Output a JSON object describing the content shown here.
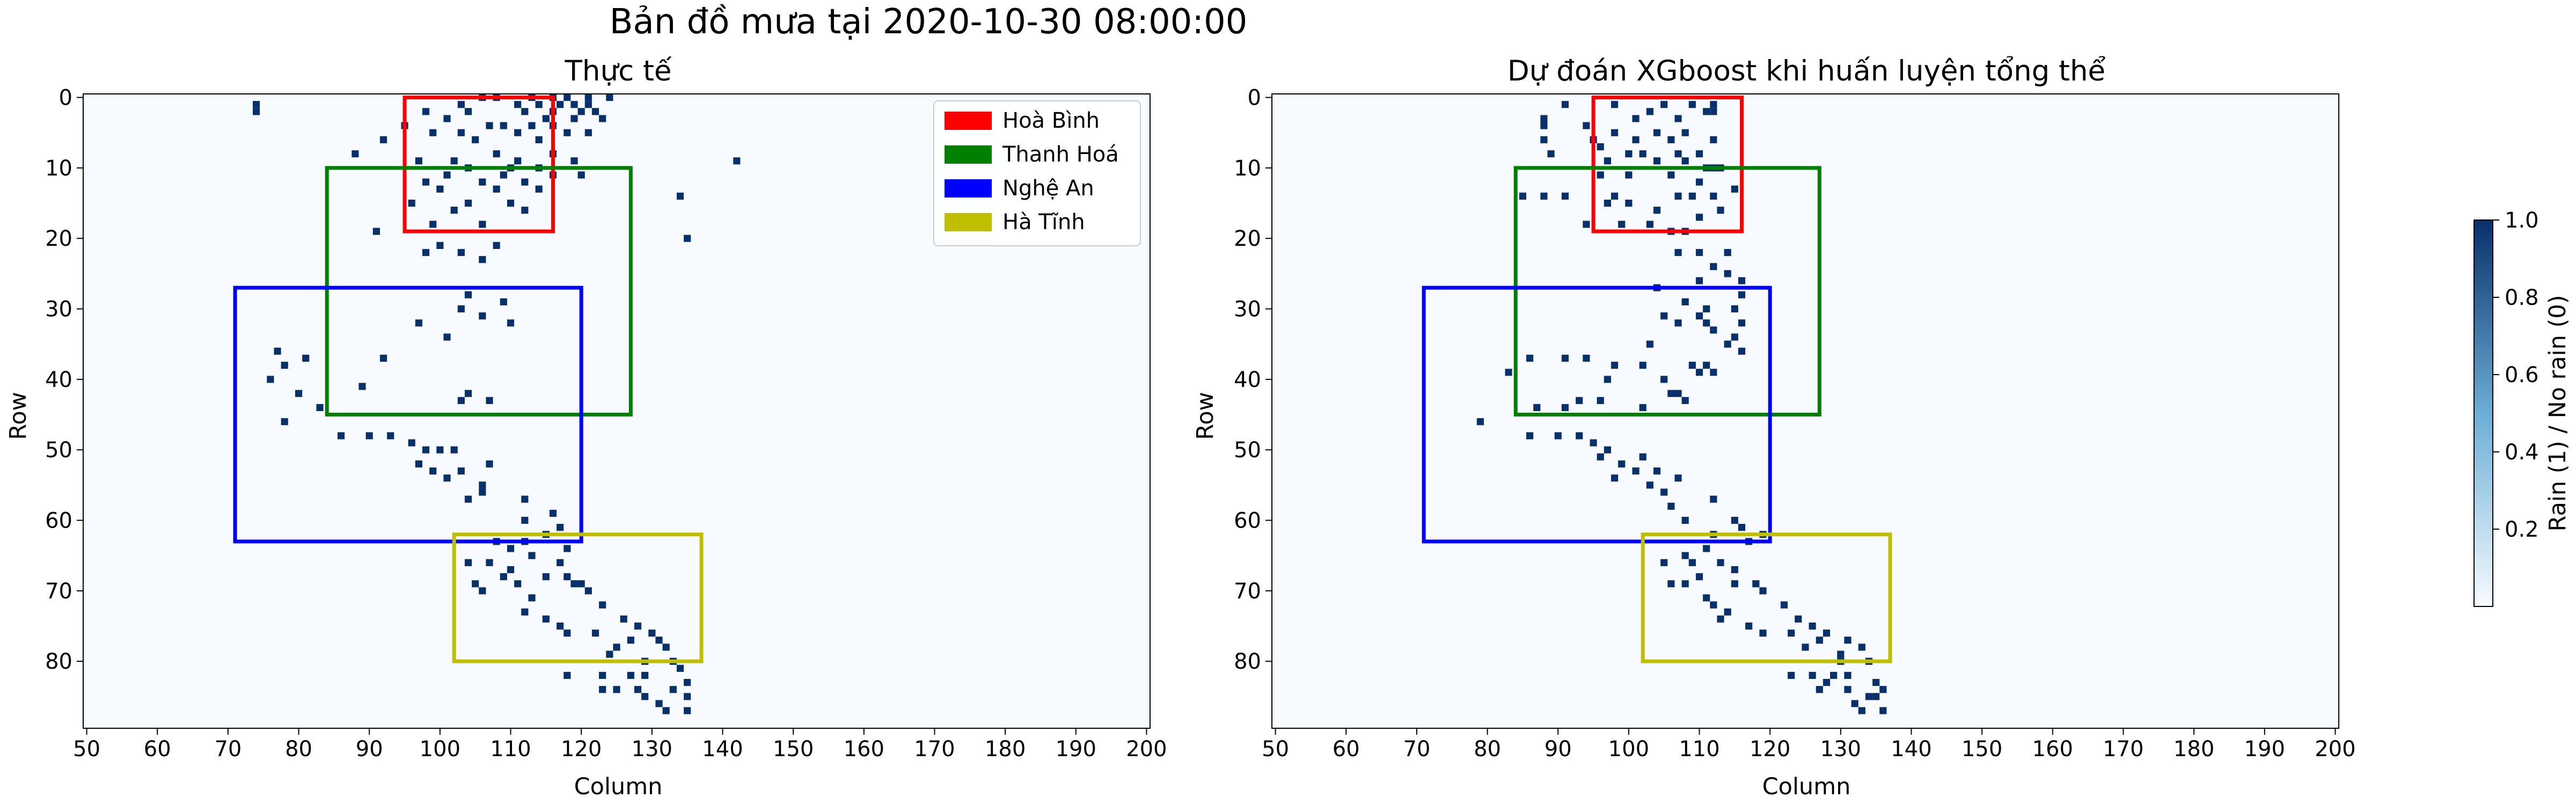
{
  "suptitle": "Bản đồ mưa tại 2020-10-30 08:00:00",
  "colors": {
    "background_cell": "#f7fbff",
    "rain_cell": "#08306b",
    "cmap_low": "#f7fbff",
    "cmap_mid": "#6baed6",
    "cmap_high": "#08306b"
  },
  "colorbar": {
    "label": "Rain (1) / No rain (0)",
    "ticks": [
      "0.2",
      "0.4",
      "0.6",
      "0.8",
      "1.0"
    ],
    "range": [
      0,
      1
    ]
  },
  "chart_data": [
    {
      "type": "heatmap",
      "title": "Thực tế",
      "xlabel": "Column",
      "ylabel": "Row",
      "xlim": [
        49.5,
        200.5
      ],
      "ylim": [
        89.5,
        -0.5
      ],
      "xticks": [
        "50",
        "60",
        "70",
        "80",
        "90",
        "100",
        "110",
        "120",
        "130",
        "140",
        "150",
        "160",
        "170",
        "180",
        "190",
        "200"
      ],
      "yticks": [
        "0",
        "10",
        "20",
        "30",
        "40",
        "50",
        "60",
        "70",
        "80"
      ],
      "grid": false,
      "legend_position": "top-right",
      "regions": [
        {
          "name": "Hoà Bình",
          "color": "#ff0000",
          "col_range": [
            95,
            116
          ],
          "row_range": [
            0,
            19
          ]
        },
        {
          "name": "Thanh Hoá",
          "color": "#008000",
          "col_range": [
            84,
            127
          ],
          "row_range": [
            10,
            45
          ]
        },
        {
          "name": "Nghệ An",
          "color": "#0000ff",
          "col_range": [
            71,
            120
          ],
          "row_range": [
            27,
            63
          ]
        },
        {
          "name": "Hà Tĩnh",
          "color": "#bfbf00",
          "col_range": [
            102,
            137
          ],
          "row_range": [
            62,
            80
          ]
        }
      ],
      "rain_cells": [
        [
          74,
          1
        ],
        [
          74,
          2
        ],
        [
          106,
          0
        ],
        [
          108,
          0
        ],
        [
          113,
          0
        ],
        [
          116,
          0
        ],
        [
          118,
          0
        ],
        [
          121,
          0
        ],
        [
          124,
          0
        ],
        [
          103,
          1
        ],
        [
          111,
          1
        ],
        [
          114,
          1
        ],
        [
          117,
          1
        ],
        [
          119,
          1
        ],
        [
          121,
          1
        ],
        [
          98,
          2
        ],
        [
          104,
          2
        ],
        [
          112,
          2
        ],
        [
          116,
          2
        ],
        [
          120,
          2
        ],
        [
          122,
          2
        ],
        [
          101,
          3
        ],
        [
          115,
          3
        ],
        [
          119,
          3
        ],
        [
          123,
          3
        ],
        [
          95,
          4
        ],
        [
          107,
          4
        ],
        [
          109,
          4
        ],
        [
          113,
          4
        ],
        [
          116,
          4
        ],
        [
          99,
          5
        ],
        [
          103,
          5
        ],
        [
          111,
          5
        ],
        [
          118,
          5
        ],
        [
          121,
          5
        ],
        [
          92,
          6
        ],
        [
          105,
          6
        ],
        [
          114,
          6
        ],
        [
          88,
          8
        ],
        [
          108,
          8
        ],
        [
          116,
          8
        ],
        [
          97,
          9
        ],
        [
          102,
          9
        ],
        [
          111,
          9
        ],
        [
          119,
          9
        ],
        [
          142,
          9
        ],
        [
          104,
          10
        ],
        [
          110,
          10
        ],
        [
          114,
          10
        ],
        [
          101,
          11
        ],
        [
          109,
          11
        ],
        [
          116,
          11
        ],
        [
          120,
          11
        ],
        [
          98,
          12
        ],
        [
          106,
          12
        ],
        [
          112,
          12
        ],
        [
          100,
          13
        ],
        [
          108,
          13
        ],
        [
          114,
          13
        ],
        [
          134,
          14
        ],
        [
          96,
          15
        ],
        [
          104,
          15
        ],
        [
          110,
          15
        ],
        [
          102,
          16
        ],
        [
          112,
          16
        ],
        [
          91,
          19
        ],
        [
          99,
          18
        ],
        [
          106,
          18
        ],
        [
          135,
          20
        ],
        [
          100,
          21
        ],
        [
          108,
          21
        ],
        [
          98,
          22
        ],
        [
          103,
          22
        ],
        [
          106,
          23
        ],
        [
          104,
          28
        ],
        [
          109,
          29
        ],
        [
          103,
          30
        ],
        [
          106,
          31
        ],
        [
          110,
          32
        ],
        [
          97,
          32
        ],
        [
          92,
          37
        ],
        [
          89,
          41
        ],
        [
          101,
          34
        ],
        [
          104,
          42
        ],
        [
          107,
          43
        ],
        [
          103,
          43
        ],
        [
          77,
          36
        ],
        [
          78,
          38
        ],
        [
          81,
          37
        ],
        [
          76,
          40
        ],
        [
          80,
          42
        ],
        [
          83,
          44
        ],
        [
          78,
          46
        ],
        [
          86,
          48
        ],
        [
          90,
          48
        ],
        [
          93,
          48
        ],
        [
          96,
          49
        ],
        [
          98,
          50
        ],
        [
          100,
          50
        ],
        [
          102,
          50
        ],
        [
          97,
          52
        ],
        [
          99,
          53
        ],
        [
          103,
          53
        ],
        [
          107,
          52
        ],
        [
          101,
          54
        ],
        [
          106,
          55
        ],
        [
          106,
          56
        ],
        [
          112,
          57
        ],
        [
          104,
          57
        ],
        [
          112,
          60
        ],
        [
          116,
          59
        ],
        [
          115,
          62
        ],
        [
          117,
          61
        ],
        [
          118,
          64
        ],
        [
          108,
          63
        ],
        [
          110,
          64
        ],
        [
          112,
          63
        ],
        [
          113,
          65
        ],
        [
          117,
          66
        ],
        [
          104,
          66
        ],
        [
          107,
          66
        ],
        [
          110,
          67
        ],
        [
          109,
          68
        ],
        [
          115,
          68
        ],
        [
          118,
          68
        ],
        [
          119,
          69
        ],
        [
          120,
          69
        ],
        [
          121,
          70
        ],
        [
          105,
          69
        ],
        [
          106,
          70
        ],
        [
          111,
          69
        ],
        [
          123,
          72
        ],
        [
          113,
          71
        ],
        [
          112,
          73
        ],
        [
          115,
          74
        ],
        [
          126,
          74
        ],
        [
          117,
          75
        ],
        [
          128,
          75
        ],
        [
          118,
          76
        ],
        [
          122,
          76
        ],
        [
          130,
          76
        ],
        [
          127,
          77
        ],
        [
          131,
          77
        ],
        [
          125,
          78
        ],
        [
          132,
          78
        ],
        [
          124,
          79
        ],
        [
          129,
          80
        ],
        [
          133,
          80
        ],
        [
          134,
          81
        ],
        [
          118,
          82
        ],
        [
          127,
          82
        ],
        [
          129,
          82
        ],
        [
          123,
          82
        ],
        [
          123,
          84
        ],
        [
          125,
          84
        ],
        [
          128,
          84
        ],
        [
          135,
          83
        ],
        [
          133,
          84
        ],
        [
          129,
          85
        ],
        [
          131,
          86
        ],
        [
          132,
          87
        ],
        [
          135,
          87
        ],
        [
          135,
          85
        ]
      ]
    },
    {
      "type": "heatmap",
      "title": "Dự đoán XGboost khi huấn luyện tổng thể",
      "xlabel": "Column",
      "ylabel": "Row",
      "xlim": [
        49.5,
        200.5
      ],
      "ylim": [
        89.5,
        -0.5
      ],
      "xticks": [
        "50",
        "60",
        "70",
        "80",
        "90",
        "100",
        "110",
        "120",
        "130",
        "140",
        "150",
        "160",
        "170",
        "180",
        "190",
        "200"
      ],
      "yticks": [
        "0",
        "10",
        "20",
        "30",
        "40",
        "50",
        "60",
        "70",
        "80"
      ],
      "grid": false,
      "regions": [
        {
          "name": "Hoà Bình",
          "color": "#ff0000",
          "col_range": [
            95,
            116
          ],
          "row_range": [
            0,
            19
          ]
        },
        {
          "name": "Thanh Hoá",
          "color": "#008000",
          "col_range": [
            84,
            127
          ],
          "row_range": [
            10,
            45
          ]
        },
        {
          "name": "Nghệ An",
          "color": "#0000ff",
          "col_range": [
            71,
            120
          ],
          "row_range": [
            27,
            63
          ]
        },
        {
          "name": "Hà Tĩnh",
          "color": "#bfbf00",
          "col_range": [
            102,
            137
          ],
          "row_range": [
            62,
            80
          ]
        }
      ],
      "rain_cells": [
        [
          91,
          1
        ],
        [
          98,
          1
        ],
        [
          105,
          1
        ],
        [
          109,
          1
        ],
        [
          112,
          1
        ],
        [
          103,
          2
        ],
        [
          111,
          2
        ],
        [
          112,
          2
        ],
        [
          101,
          3
        ],
        [
          107,
          3
        ],
        [
          88,
          3
        ],
        [
          88,
          4
        ],
        [
          94,
          4
        ],
        [
          98,
          5
        ],
        [
          104,
          5
        ],
        [
          108,
          5
        ],
        [
          88,
          6
        ],
        [
          95,
          6
        ],
        [
          101,
          6
        ],
        [
          106,
          6
        ],
        [
          112,
          6
        ],
        [
          89,
          8
        ],
        [
          96,
          7
        ],
        [
          100,
          8
        ],
        [
          102,
          8
        ],
        [
          107,
          8
        ],
        [
          110,
          8
        ],
        [
          97,
          9
        ],
        [
          104,
          9
        ],
        [
          108,
          9
        ],
        [
          112,
          10
        ],
        [
          113,
          10
        ],
        [
          111,
          10
        ],
        [
          96,
          11
        ],
        [
          100,
          11
        ],
        [
          106,
          11
        ],
        [
          110,
          12
        ],
        [
          115,
          13
        ],
        [
          85,
          14
        ],
        [
          88,
          14
        ],
        [
          91,
          14
        ],
        [
          98,
          14
        ],
        [
          107,
          14
        ],
        [
          109,
          14
        ],
        [
          112,
          14
        ],
        [
          97,
          15
        ],
        [
          100,
          15
        ],
        [
          104,
          16
        ],
        [
          113,
          16
        ],
        [
          110,
          17
        ],
        [
          103,
          18
        ],
        [
          99,
          18
        ],
        [
          94,
          18
        ],
        [
          106,
          19
        ],
        [
          108,
          19
        ],
        [
          107,
          22
        ],
        [
          110,
          22
        ],
        [
          114,
          22
        ],
        [
          112,
          24
        ],
        [
          114,
          25
        ],
        [
          110,
          26
        ],
        [
          116,
          26
        ],
        [
          104,
          27
        ],
        [
          116,
          28
        ],
        [
          108,
          29
        ],
        [
          111,
          30
        ],
        [
          115,
          30
        ],
        [
          105,
          31
        ],
        [
          110,
          31
        ],
        [
          107,
          32
        ],
        [
          111,
          32
        ],
        [
          116,
          32
        ],
        [
          112,
          33
        ],
        [
          115,
          34
        ],
        [
          114,
          35
        ],
        [
          116,
          36
        ],
        [
          103,
          35
        ],
        [
          102,
          38
        ],
        [
          83,
          39
        ],
        [
          86,
          37
        ],
        [
          91,
          37
        ],
        [
          94,
          37
        ],
        [
          98,
          38
        ],
        [
          109,
          38
        ],
        [
          111,
          38
        ],
        [
          97,
          40
        ],
        [
          105,
          40
        ],
        [
          110,
          39
        ],
        [
          112,
          39
        ],
        [
          107,
          42
        ],
        [
          108,
          43
        ],
        [
          93,
          43
        ],
        [
          96,
          43
        ],
        [
          87,
          44
        ],
        [
          91,
          44
        ],
        [
          102,
          44
        ],
        [
          106,
          42
        ],
        [
          79,
          46
        ],
        [
          86,
          48
        ],
        [
          90,
          48
        ],
        [
          93,
          48
        ],
        [
          95,
          49
        ],
        [
          97,
          50
        ],
        [
          96,
          51
        ],
        [
          99,
          52
        ],
        [
          102,
          51
        ],
        [
          101,
          53
        ],
        [
          104,
          53
        ],
        [
          98,
          54
        ],
        [
          107,
          54
        ],
        [
          103,
          55
        ],
        [
          105,
          56
        ],
        [
          106,
          58
        ],
        [
          112,
          57
        ],
        [
          108,
          60
        ],
        [
          115,
          60
        ],
        [
          116,
          61
        ],
        [
          117,
          63
        ],
        [
          119,
          62
        ],
        [
          112,
          62
        ],
        [
          111,
          64
        ],
        [
          108,
          65
        ],
        [
          105,
          66
        ],
        [
          109,
          66
        ],
        [
          113,
          66
        ],
        [
          115,
          67
        ],
        [
          110,
          68
        ],
        [
          106,
          69
        ],
        [
          108,
          69
        ],
        [
          115,
          69
        ],
        [
          118,
          69
        ],
        [
          119,
          70
        ],
        [
          111,
          71
        ],
        [
          112,
          72
        ],
        [
          114,
          73
        ],
        [
          113,
          74
        ],
        [
          117,
          75
        ],
        [
          122,
          72
        ],
        [
          124,
          74
        ],
        [
          126,
          75
        ],
        [
          123,
          76
        ],
        [
          128,
          76
        ],
        [
          119,
          76
        ],
        [
          127,
          77
        ],
        [
          131,
          77
        ],
        [
          125,
          78
        ],
        [
          130,
          79
        ],
        [
          130,
          80
        ],
        [
          134,
          80
        ],
        [
          133,
          78
        ],
        [
          123,
          82
        ],
        [
          126,
          82
        ],
        [
          129,
          82
        ],
        [
          128,
          83
        ],
        [
          131,
          82
        ],
        [
          135,
          83
        ],
        [
          127,
          84
        ],
        [
          131,
          84
        ],
        [
          136,
          84
        ],
        [
          134,
          85
        ],
        [
          132,
          86
        ],
        [
          133,
          87
        ],
        [
          136,
          87
        ],
        [
          135,
          85
        ]
      ]
    }
  ]
}
